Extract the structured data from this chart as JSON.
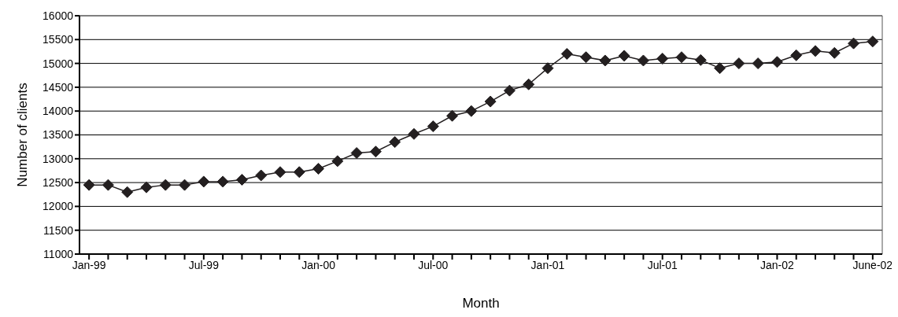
{
  "chart_data": {
    "type": "line",
    "xlabel": "Month",
    "ylabel": "Number of clients",
    "categories": [
      "Jan-99",
      null,
      null,
      null,
      null,
      null,
      "Jul-99",
      null,
      null,
      null,
      null,
      null,
      "Jan-00",
      null,
      null,
      null,
      null,
      null,
      "Jul-00",
      null,
      null,
      null,
      null,
      null,
      "Jan-01",
      null,
      null,
      null,
      null,
      null,
      "Jul-01",
      null,
      null,
      null,
      null,
      null,
      "Jan-02",
      null,
      null,
      null,
      null,
      "June-02"
    ],
    "series": [
      {
        "color": "#231f20",
        "values": [
          12450,
          12450,
          12300,
          12400,
          12450,
          12450,
          12520,
          12520,
          12560,
          12650,
          12720,
          12720,
          12790,
          12950,
          13120,
          13150,
          13350,
          13520,
          13680,
          13900,
          14000,
          14200,
          14430,
          14560,
          14900,
          15200,
          15130,
          15060,
          15160,
          15060,
          15100,
          15130,
          15070,
          14900,
          15000,
          15000,
          15030,
          15170,
          15260,
          15220,
          15420,
          15460
        ]
      }
    ],
    "ylim": [
      11000,
      16000
    ],
    "yticks": [
      11000,
      11500,
      12000,
      12500,
      13000,
      13500,
      14000,
      14500,
      15000,
      15500,
      16000
    ],
    "grid": "y",
    "marker": "diamond",
    "line_style": "solid"
  }
}
